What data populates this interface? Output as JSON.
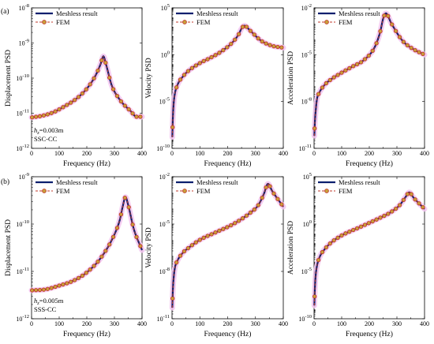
{
  "figure": {
    "row_labels": [
      "(a)",
      "(b)"
    ],
    "legend": {
      "meshless": "Meshless result",
      "fem": "FEM"
    },
    "xlabel": "Frequency (Hz)",
    "colors": {
      "meshless_line": "#0a1f6e",
      "fem_line": "#c0392b",
      "fem_marker_fill": "#c8a23a",
      "glow": "#f3c4ee"
    }
  },
  "chart_data": [
    {
      "type": "line",
      "row": "a",
      "col": 1,
      "ylabel": "Displacement PSD",
      "yscale": "log",
      "xlim": [
        0,
        400
      ],
      "ylim_exp": [
        -12,
        -8
      ],
      "x_ticks": [
        "0",
        "100",
        "200",
        "300",
        "400"
      ],
      "y_ticks": [
        {
          "base": "10",
          "exp": "-12"
        },
        {
          "base": "10",
          "exp": "-11"
        },
        {
          "base": "10",
          "exp": "-10"
        },
        {
          "base": "10",
          "exp": "-9"
        },
        {
          "base": "10",
          "exp": "-8"
        }
      ],
      "annotation": {
        "line1_main": "h",
        "line1_sub": "z",
        "line1_rest": "=0.003m",
        "line2": "SSC-CC"
      },
      "series": [
        {
          "x": [
            0,
            40,
            80,
            120,
            160,
            200,
            230,
            250,
            260,
            270,
            290,
            320,
            360,
            380,
            400
          ],
          "log10_y": [
            -11.12,
            -11.07,
            -10.97,
            -10.8,
            -10.6,
            -10.3,
            -9.95,
            -9.6,
            -9.38,
            -9.62,
            -10.2,
            -10.62,
            -10.95,
            -11.1,
            -11.1
          ]
        }
      ]
    },
    {
      "type": "line",
      "row": "a",
      "col": 2,
      "ylabel": "Velocity PSD",
      "yscale": "log",
      "xlim": [
        0,
        400
      ],
      "ylim_exp": [
        -10,
        5
      ],
      "x_ticks": [
        "0",
        "100",
        "200",
        "300",
        "400"
      ],
      "y_ticks": [
        {
          "base": "10",
          "exp": "-10"
        },
        {
          "base": "10",
          "exp": "-5"
        },
        {
          "base": "10",
          "exp": "0"
        },
        {
          "base": "10",
          "exp": "5"
        }
      ],
      "series": [
        {
          "x": [
            1,
            3,
            6,
            10,
            20,
            40,
            60,
            100,
            140,
            180,
            220,
            240,
            250,
            260,
            280,
            320,
            360,
            400
          ],
          "log10_y": [
            -8.8,
            -6.8,
            -5.2,
            -4.2,
            -3.2,
            -2.3,
            -1.7,
            -0.9,
            -0.3,
            0.4,
            1.4,
            2.2,
            2.8,
            3.1,
            2.6,
            1.5,
            0.95,
            0.75
          ]
        }
      ]
    },
    {
      "type": "line",
      "row": "a",
      "col": 3,
      "ylabel": "Acceleration PSD",
      "yscale": "log",
      "xlim": [
        0,
        400
      ],
      "ylim_exp": [
        -11,
        -2
      ],
      "x_ticks": [
        "0",
        "100",
        "200",
        "300",
        "400"
      ],
      "y_ticks": [
        {
          "base": "10",
          "exp": "-11"
        },
        {
          "base": "10",
          "exp": "-8"
        },
        {
          "base": "10",
          "exp": "-5"
        },
        {
          "base": "10",
          "exp": "-2"
        }
      ],
      "series": [
        {
          "x": [
            1,
            3,
            6,
            10,
            20,
            40,
            60,
            100,
            140,
            180,
            220,
            240,
            250,
            260,
            280,
            320,
            360,
            400
          ],
          "log10_y": [
            -10.2,
            -9.3,
            -8.6,
            -7.9,
            -7.4,
            -6.9,
            -6.6,
            -6.15,
            -5.75,
            -5.35,
            -4.5,
            -3.5,
            -2.7,
            -2.35,
            -3.0,
            -4.1,
            -4.65,
            -5.0
          ]
        }
      ]
    },
    {
      "type": "line",
      "row": "b",
      "col": 1,
      "ylabel": "Displacement PSD",
      "yscale": "log",
      "xlim": [
        0,
        400
      ],
      "ylim_exp": [
        -12,
        -9
      ],
      "x_ticks": [
        "0",
        "100",
        "200",
        "300",
        "400"
      ],
      "y_ticks": [
        {
          "base": "10",
          "exp": "-12"
        },
        {
          "base": "10",
          "exp": "-11"
        },
        {
          "base": "10",
          "exp": "-10"
        },
        {
          "base": "10",
          "exp": "-9"
        }
      ],
      "annotation": {
        "line1_main": "h",
        "line1_sub": "z",
        "line1_rest": "=0.005m",
        "line2": "SSS-CC"
      },
      "series": [
        {
          "x": [
            0,
            50,
            100,
            150,
            200,
            250,
            300,
            320,
            330,
            340,
            350,
            370,
            400
          ],
          "log10_y": [
            -11.4,
            -11.38,
            -11.3,
            -11.2,
            -11.02,
            -10.72,
            -10.22,
            -9.9,
            -9.63,
            -9.43,
            -9.6,
            -10.1,
            -10.55
          ]
        }
      ]
    },
    {
      "type": "line",
      "row": "b",
      "col": 2,
      "ylabel": "Velocity PSD",
      "yscale": "log",
      "xlim": [
        0,
        400
      ],
      "ylim_exp": [
        -11,
        -2
      ],
      "x_ticks": [
        "0",
        "100",
        "200",
        "300",
        "400"
      ],
      "y_ticks": [
        {
          "base": "10",
          "exp": "-11"
        },
        {
          "base": "10",
          "exp": "-8"
        },
        {
          "base": "10",
          "exp": "-5"
        },
        {
          "base": "10",
          "exp": "-2"
        }
      ],
      "series": [
        {
          "x": [
            1,
            3,
            6,
            10,
            20,
            40,
            60,
            100,
            160,
            220,
            280,
            310,
            330,
            345,
            360,
            400
          ],
          "log10_y": [
            -10.3,
            -9.2,
            -8.4,
            -7.8,
            -7.3,
            -6.8,
            -6.5,
            -6.0,
            -5.5,
            -5.0,
            -4.3,
            -3.8,
            -3.1,
            -2.45,
            -2.9,
            -3.9
          ]
        }
      ]
    },
    {
      "type": "line",
      "row": "b",
      "col": 3,
      "ylabel": "Acceleration PSD",
      "yscale": "log",
      "xlim": [
        0,
        400
      ],
      "ylim_exp": [
        -10,
        5
      ],
      "x_ticks": [
        "0",
        "100",
        "200",
        "300",
        "400"
      ],
      "y_ticks": [
        {
          "base": "10",
          "exp": "-10"
        },
        {
          "base": "10",
          "exp": "-5"
        },
        {
          "base": "10",
          "exp": "0"
        },
        {
          "base": "10",
          "exp": "5"
        }
      ],
      "series": [
        {
          "x": [
            1,
            3,
            6,
            10,
            20,
            40,
            60,
            100,
            160,
            220,
            280,
            310,
            330,
            345,
            360,
            400
          ],
          "log10_y": [
            -8.6,
            -6.8,
            -5.4,
            -4.5,
            -3.5,
            -2.6,
            -2.0,
            -1.2,
            -0.4,
            0.4,
            1.3,
            2.0,
            2.8,
            3.35,
            2.8,
            1.6
          ]
        }
      ]
    }
  ]
}
